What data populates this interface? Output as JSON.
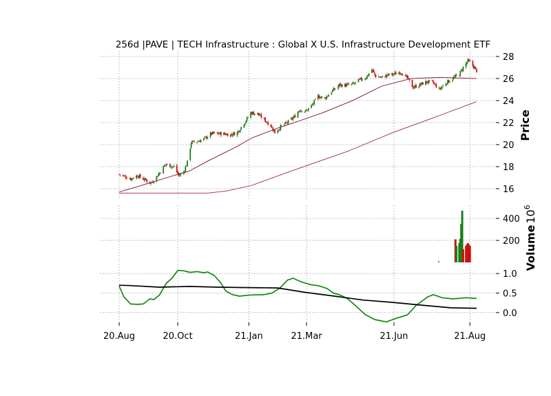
{
  "chart_data": [
    {
      "type": "candlestick",
      "title": "256d |PAVE | TECH Infrastructure : Global X U.S. Infrastructure Development ETF",
      "ylabel": "Price",
      "ylim": [
        15.0,
        28.5
      ],
      "yticks": [
        16,
        18,
        20,
        22,
        24,
        26,
        28
      ],
      "up_color": "#1a7f1a",
      "down_color": "#cc1111",
      "close_path": [
        [
          "2020-08-20",
          17.3
        ],
        [
          "2020-09-01",
          16.9
        ],
        [
          "2020-09-08",
          17.2
        ],
        [
          "2020-09-22",
          16.5
        ],
        [
          "2020-09-29",
          17.2
        ],
        [
          "2020-10-07",
          18.2
        ],
        [
          "2020-10-16",
          18.0
        ],
        [
          "2020-10-21",
          17.2
        ],
        [
          "2020-10-26",
          17.5
        ],
        [
          "2020-10-30",
          18.4
        ],
        [
          "2020-11-03",
          20.2
        ],
        [
          "2020-11-10",
          20.3
        ],
        [
          "2020-11-16",
          20.5
        ],
        [
          "2020-11-24",
          21.0
        ],
        [
          "2020-12-04",
          21.0
        ],
        [
          "2020-12-14",
          20.9
        ],
        [
          "2020-12-21",
          21.1
        ],
        [
          "2020-12-30",
          22.2
        ],
        [
          "2021-01-04",
          22.9
        ],
        [
          "2021-01-11",
          22.8
        ],
        [
          "2021-01-19",
          22.2
        ],
        [
          "2021-01-25",
          21.7
        ],
        [
          "2021-01-29",
          21.1
        ],
        [
          "2021-02-04",
          21.6
        ],
        [
          "2021-02-11",
          22.0
        ],
        [
          "2021-02-18",
          22.5
        ],
        [
          "2021-02-24",
          23.2
        ],
        [
          "2021-03-02",
          23.0
        ],
        [
          "2021-03-09",
          23.6
        ],
        [
          "2021-03-15",
          24.4
        ],
        [
          "2021-03-22",
          24.2
        ],
        [
          "2021-03-29",
          24.8
        ],
        [
          "2021-04-06",
          25.4
        ],
        [
          "2021-04-14",
          25.4
        ],
        [
          "2021-04-21",
          25.5
        ],
        [
          "2021-04-28",
          25.9
        ],
        [
          "2021-05-04",
          26.1
        ],
        [
          "2021-05-10",
          26.8
        ],
        [
          "2021-05-14",
          26.2
        ],
        [
          "2021-05-20",
          26.1
        ],
        [
          "2021-05-26",
          26.3
        ],
        [
          "2021-06-02",
          26.4
        ],
        [
          "2021-06-09",
          26.6
        ],
        [
          "2021-06-16",
          26.0
        ],
        [
          "2021-06-22",
          25.2
        ],
        [
          "2021-06-28",
          25.4
        ],
        [
          "2021-07-06",
          25.7
        ],
        [
          "2021-07-13",
          25.6
        ],
        [
          "2021-07-19",
          25.0
        ],
        [
          "2021-07-26",
          25.6
        ],
        [
          "2021-08-02",
          26.0
        ],
        [
          "2021-08-09",
          26.4
        ],
        [
          "2021-08-13",
          27.0
        ],
        [
          "2021-08-18",
          27.6
        ],
        [
          "2021-08-22",
          27.3
        ],
        [
          "2021-08-27",
          26.7
        ]
      ],
      "moving_averages": [
        {
          "values": [
            [
              "2020-08-20",
              15.7
            ],
            [
              "2020-09-20",
              16.5
            ],
            [
              "2020-10-16",
              17.2
            ],
            [
              "2020-11-01",
              17.6
            ],
            [
              "2020-11-20",
              18.5
            ],
            [
              "2020-12-20",
              19.8
            ],
            [
              "2021-01-05",
              20.6
            ],
            [
              "2021-02-01",
              21.5
            ],
            [
              "2021-02-25",
              22.2
            ],
            [
              "2021-03-20",
              22.9
            ],
            [
              "2021-04-20",
              24.0
            ],
            [
              "2021-05-20",
              25.3
            ],
            [
              "2021-06-20",
              26.0
            ],
            [
              "2021-07-20",
              26.1
            ],
            [
              "2021-08-27",
              26.0
            ]
          ],
          "color": "#8b2340"
        },
        {
          "values": [
            [
              "2020-08-20",
              15.6
            ],
            [
              "2020-11-20",
              15.6
            ],
            [
              "2020-12-10",
              15.8
            ],
            [
              "2021-01-05",
              16.3
            ],
            [
              "2021-02-15",
              17.6
            ],
            [
              "2021-04-15",
              19.4
            ],
            [
              "2021-06-01",
              21.1
            ],
            [
              "2021-07-15",
              22.5
            ],
            [
              "2021-08-27",
              23.9
            ]
          ],
          "color": "#a8405e"
        }
      ]
    },
    {
      "type": "bar",
      "ylabel": "Volume",
      "scale_note": "10^6",
      "ylim": [
        0,
        520
      ],
      "yticks": [
        200,
        400
      ],
      "bars": [
        {
          "x": "2021-08-05",
          "value": 210,
          "color": "#cc1111"
        },
        {
          "x": "2021-08-06",
          "value": 150,
          "color": "#1a7f1a"
        },
        {
          "x": "2021-08-09",
          "value": 175,
          "color": "#1a7f1a"
        },
        {
          "x": "2021-08-10",
          "value": 215,
          "color": "#1a7f1a"
        },
        {
          "x": "2021-08-11",
          "value": 350,
          "color": "#1a7f1a"
        },
        {
          "x": "2021-08-12",
          "value": 470,
          "color": "#1a7f1a"
        },
        {
          "x": "2021-08-13",
          "value": 120,
          "color": "#cc1111"
        },
        {
          "x": "2021-08-16",
          "value": 150,
          "color": "#cc1111"
        },
        {
          "x": "2021-08-17",
          "value": 165,
          "color": "#cc1111"
        },
        {
          "x": "2021-08-18",
          "value": 175,
          "color": "#cc1111"
        },
        {
          "x": "2021-08-19",
          "value": 160,
          "color": "#cc1111"
        },
        {
          "x": "2021-08-20",
          "value": 150,
          "color": "#cc1111"
        }
      ]
    },
    {
      "type": "line",
      "ylim": [
        -0.25,
        1.25
      ],
      "yticks": [
        0.0,
        0.5,
        1.0
      ],
      "series": [
        {
          "color": "#118811",
          "values": [
            [
              "2020-08-20",
              0.68
            ],
            [
              "2020-08-25",
              0.4
            ],
            [
              "2020-09-01",
              0.22
            ],
            [
              "2020-09-08",
              0.21
            ],
            [
              "2020-09-14",
              0.22
            ],
            [
              "2020-09-21",
              0.35
            ],
            [
              "2020-09-25",
              0.33
            ],
            [
              "2020-10-01",
              0.45
            ],
            [
              "2020-10-08",
              0.75
            ],
            [
              "2020-10-14",
              0.88
            ],
            [
              "2020-10-20",
              1.08
            ],
            [
              "2020-10-26",
              1.07
            ],
            [
              "2020-11-02",
              1.03
            ],
            [
              "2020-11-09",
              1.05
            ],
            [
              "2020-11-16",
              1.02
            ],
            [
              "2020-11-20",
              1.04
            ],
            [
              "2020-11-27",
              0.95
            ],
            [
              "2020-12-04",
              0.75
            ],
            [
              "2020-12-09",
              0.55
            ],
            [
              "2020-12-16",
              0.46
            ],
            [
              "2020-12-23",
              0.42
            ],
            [
              "2021-01-04",
              0.45
            ],
            [
              "2021-01-18",
              0.46
            ],
            [
              "2021-01-26",
              0.5
            ],
            [
              "2021-02-03",
              0.62
            ],
            [
              "2021-02-11",
              0.83
            ],
            [
              "2021-02-17",
              0.88
            ],
            [
              "2021-02-26",
              0.78
            ],
            [
              "2021-03-08",
              0.71
            ],
            [
              "2021-03-15",
              0.69
            ],
            [
              "2021-03-24",
              0.62
            ],
            [
              "2021-03-31",
              0.5
            ],
            [
              "2021-04-07",
              0.45
            ],
            [
              "2021-04-15",
              0.35
            ],
            [
              "2021-04-22",
              0.2
            ],
            [
              "2021-05-03",
              -0.05
            ],
            [
              "2021-05-13",
              -0.18
            ],
            [
              "2021-05-25",
              -0.24
            ],
            [
              "2021-06-04",
              -0.15
            ],
            [
              "2021-06-16",
              -0.06
            ],
            [
              "2021-06-25",
              0.18
            ],
            [
              "2021-07-07",
              0.4
            ],
            [
              "2021-07-13",
              0.46
            ],
            [
              "2021-07-22",
              0.38
            ],
            [
              "2021-08-02",
              0.35
            ],
            [
              "2021-08-16",
              0.38
            ],
            [
              "2021-08-27",
              0.36
            ]
          ]
        },
        {
          "color": "#000000",
          "values": [
            [
              "2020-08-20",
              0.7
            ],
            [
              "2020-09-01",
              0.69
            ],
            [
              "2020-10-01",
              0.65
            ],
            [
              "2020-11-01",
              0.67
            ],
            [
              "2020-12-01",
              0.65
            ],
            [
              "2021-01-02",
              0.64
            ],
            [
              "2021-02-01",
              0.63
            ],
            [
              "2021-03-01",
              0.52
            ],
            [
              "2021-04-01",
              0.42
            ],
            [
              "2021-05-01",
              0.32
            ],
            [
              "2021-06-01",
              0.26
            ],
            [
              "2021-07-01",
              0.19
            ],
            [
              "2021-08-01",
              0.12
            ],
            [
              "2021-08-27",
              0.11
            ]
          ]
        }
      ]
    }
  ],
  "x_ticks": [
    "20.Aug",
    "20.Oct",
    "21.Jan",
    "21.Mar",
    "21.Jun",
    "21.Aug"
  ]
}
